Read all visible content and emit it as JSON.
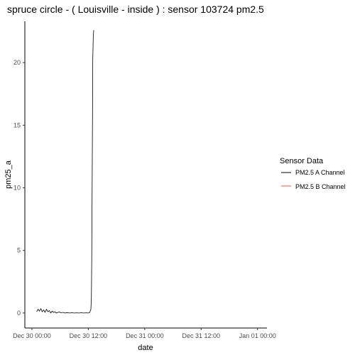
{
  "chart_data": {
    "type": "line",
    "title": "spruce circle - ( Louisville - inside ) : sensor 103724 pm2.5",
    "xlabel": "date",
    "ylabel": "pm25_a",
    "x_ticks": [
      "Dec 30 00:00",
      "Dec 30 12:00",
      "Dec 31 00:00",
      "Dec 31 12:00",
      "Jan 01 00:00"
    ],
    "x_range_hours": [
      -1.5,
      50
    ],
    "y_ticks": [
      0,
      5,
      10,
      15,
      20
    ],
    "ylim": [
      -1.2,
      23.3
    ],
    "grid": false,
    "legend": {
      "title": "Sensor Data",
      "position": "right",
      "entries": [
        {
          "name": "PM2.5 A Channel",
          "color": "#000000"
        },
        {
          "name": "PM2.5 B Channel",
          "color": "#e8553b"
        }
      ]
    },
    "series": [
      {
        "name": "PM2.5 A Channel",
        "color": "#000000",
        "x_hours": [
          1.0,
          1.3,
          1.6,
          1.9,
          2.2,
          2.5,
          2.8,
          3.1,
          3.4,
          3.7,
          4.0,
          4.3,
          4.6,
          4.9,
          5.2,
          5.5,
          5.8,
          6.2,
          6.6,
          7.0,
          7.5,
          8.0,
          8.5,
          9.0,
          9.5,
          10.0,
          10.5,
          11.0,
          11.5,
          12.0,
          12.3,
          12.55,
          12.65,
          12.72,
          12.85,
          12.95,
          13.05,
          13.15
        ],
        "values": [
          0.1,
          0.3,
          0.15,
          0.35,
          0.1,
          0.25,
          0.05,
          0.3,
          0.1,
          0.2,
          0.0,
          0.15,
          0.05,
          0.1,
          0.0,
          0.05,
          0.08,
          0.02,
          0.05,
          0.0,
          0.03,
          0.0,
          0.02,
          0.0,
          0.01,
          0.0,
          0.02,
          0.0,
          0.01,
          0.0,
          0.05,
          0.3,
          1.2,
          4.0,
          12.5,
          20.3,
          22.0,
          22.6
        ]
      },
      {
        "name": "PM2.5 B Channel",
        "color": "#e8553b",
        "x_hours": [],
        "values": []
      }
    ]
  }
}
